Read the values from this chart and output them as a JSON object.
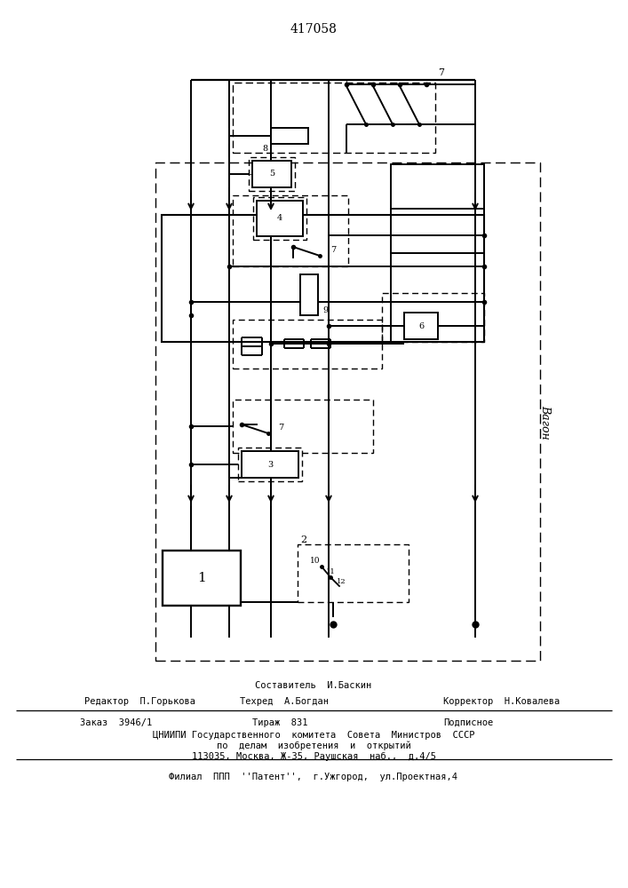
{
  "title": "417058",
  "bg_color": "#ffffff",
  "line_color": "#000000",
  "footer": [
    [
      "Составитель  И.Баскин",
      353,
      228,
      "center"
    ],
    [
      "Редактор  П.Горькова",
      95,
      210,
      "left"
    ],
    [
      "Техред  А.Богдан",
      320,
      210,
      "center"
    ],
    [
      "Корректор  Н.Ковалева",
      565,
      210,
      "center"
    ],
    [
      "Заказ  3946/1",
      90,
      186,
      "left"
    ],
    [
      "Тираж  831",
      315,
      186,
      "center"
    ],
    [
      "Подписное",
      555,
      186,
      "right"
    ],
    [
      "ЦНИИПИ Государственного  комитета  Совета  Министров  СССР",
      353,
      172,
      "center"
    ],
    [
      "по  делам  изобретения  и  открытий",
      353,
      160,
      "center"
    ],
    [
      "113035, Москва, Ж-35, Раушская  наб.,  д.4/5",
      353,
      148,
      "center"
    ],
    [
      "Филиал  ППП  ''Патент'',  г.Ужгород,  ул.Проектная,4",
      353,
      125,
      "center"
    ]
  ]
}
